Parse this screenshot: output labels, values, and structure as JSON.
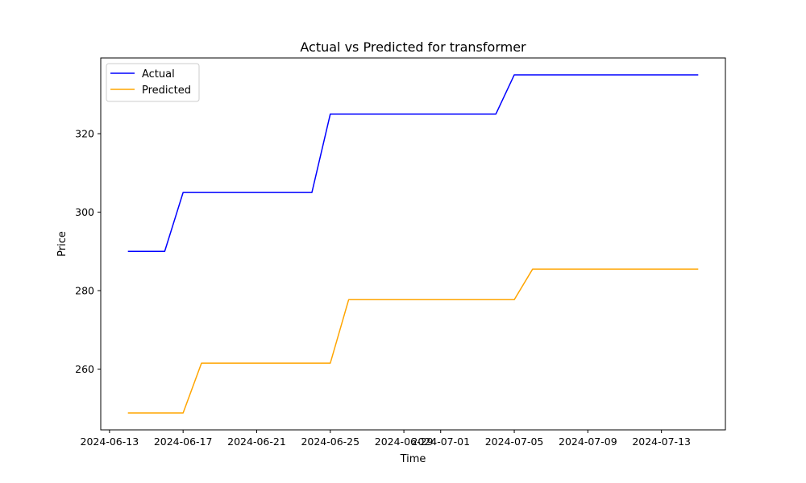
{
  "chart_data": {
    "type": "line",
    "title": "Actual vs Predicted for transformer",
    "xlabel": "Time",
    "ylabel": "Price",
    "x": [
      "2024-06-14",
      "2024-06-15",
      "2024-06-16",
      "2024-06-17",
      "2024-06-18",
      "2024-06-19",
      "2024-06-20",
      "2024-06-21",
      "2024-06-22",
      "2024-06-23",
      "2024-06-24",
      "2024-06-25",
      "2024-06-26",
      "2024-06-27",
      "2024-06-28",
      "2024-06-29",
      "2024-06-30",
      "2024-07-01",
      "2024-07-02",
      "2024-07-03",
      "2024-07-04",
      "2024-07-05",
      "2024-07-06",
      "2024-07-07",
      "2024-07-08",
      "2024-07-09",
      "2024-07-10",
      "2024-07-11",
      "2024-07-12",
      "2024-07-13",
      "2024-07-14",
      "2024-07-15"
    ],
    "series": [
      {
        "name": "Actual",
        "color": "#0000ff",
        "values": [
          290,
          290,
          290,
          305,
          305,
          305,
          305,
          305,
          305,
          305,
          305,
          325,
          325,
          325,
          325,
          325,
          325,
          325,
          325,
          325,
          325,
          335,
          335,
          335,
          335,
          335,
          335,
          335,
          335,
          335,
          335,
          335
        ]
      },
      {
        "name": "Predicted",
        "color": "#ffa500",
        "values": [
          248.8,
          248.8,
          248.8,
          248.8,
          261.5,
          261.5,
          261.5,
          261.5,
          261.5,
          261.5,
          261.5,
          261.5,
          277.7,
          277.7,
          277.7,
          277.7,
          277.7,
          277.7,
          277.7,
          277.7,
          277.7,
          277.7,
          285.5,
          285.5,
          285.5,
          285.5,
          285.5,
          285.5,
          285.5,
          285.5,
          285.5,
          285.5
        ]
      }
    ],
    "xlim": [
      "2024-06-12 12:35",
      "2024-07-16 11:25"
    ],
    "ylim": [
      244.5,
      339.3
    ],
    "xticks": [
      "2024-06-13",
      "2024-06-17",
      "2024-06-21",
      "2024-06-25",
      "2024-06-29",
      "2024-07-01",
      "2024-07-05",
      "2024-07-09",
      "2024-07-13"
    ],
    "yticks": [
      260,
      280,
      300,
      320
    ],
    "grid": false,
    "legend": "top-left"
  }
}
